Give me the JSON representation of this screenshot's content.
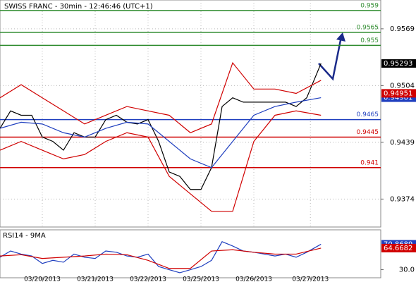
{
  "chart_data": [
    {
      "type": "line",
      "title": "SWISS FRANC - 30min - 12:46:46 (UTC+1)",
      "xlim": [
        0,
        7.2
      ],
      "ylim": [
        0.9342,
        0.9602
      ],
      "yticks": [
        0.9374,
        0.9439,
        0.9504,
        0.9569
      ],
      "grid": true,
      "xticks": [
        {
          "value": 0.8,
          "label": "03/20/2013"
        },
        {
          "value": 1.8,
          "label": "03/21/2013"
        },
        {
          "value": 2.8,
          "label": "03/22/2013"
        },
        {
          "value": 3.8,
          "label": "03/25/2013"
        },
        {
          "value": 4.8,
          "label": "03/26/2013"
        },
        {
          "value": 5.87,
          "label": "03/27/2013"
        }
      ],
      "series": [
        {
          "color": "#000000",
          "x": [
            0,
            0.2,
            0.4,
            0.6,
            0.8,
            1,
            1.2,
            1.4,
            1.6,
            1.8,
            2,
            2.2,
            2.4,
            2.6,
            2.8,
            3,
            3.2,
            3.4,
            3.6,
            3.8,
            4,
            4.2,
            4.4,
            4.6,
            4.8,
            5,
            5.2,
            5.4,
            5.6,
            5.8,
            6.07
          ],
          "values": [
            0.9455,
            0.9475,
            0.947,
            0.947,
            0.9445,
            0.944,
            0.943,
            0.945,
            0.9445,
            0.9445,
            0.9465,
            0.947,
            0.9462,
            0.946,
            0.9465,
            0.944,
            0.9405,
            0.94,
            0.9385,
            0.9385,
            0.941,
            0.948,
            0.949,
            0.9485,
            0.9485,
            0.9485,
            0.9485,
            0.9485,
            0.948,
            0.949,
            0.95293
          ]
        },
        {
          "color": "#1f3fbf",
          "x": [
            0,
            0.4,
            0.8,
            1.2,
            1.6,
            2,
            2.4,
            2.8,
            3.2,
            3.6,
            4,
            4.4,
            4.8,
            5.2,
            5.6,
            6.07
          ],
          "values": [
            0.9455,
            0.9462,
            0.946,
            0.945,
            0.9445,
            0.9455,
            0.9462,
            0.946,
            0.944,
            0.942,
            0.941,
            0.944,
            0.947,
            0.948,
            0.9485,
            0.94901
          ]
        },
        {
          "color": "#d00000",
          "x": [
            0,
            0.4,
            0.8,
            1.2,
            1.6,
            2,
            2.4,
            2.8,
            3.2,
            3.6,
            4,
            4.4,
            4.8,
            5.2,
            5.6,
            6.07
          ],
          "values": [
            0.949,
            0.9505,
            0.949,
            0.9475,
            0.946,
            0.947,
            0.948,
            0.9475,
            0.947,
            0.945,
            0.946,
            0.953,
            0.95,
            0.95,
            0.9495,
            0.951
          ]
        },
        {
          "color": "#d00000",
          "x": [
            0,
            0.4,
            0.8,
            1.2,
            1.6,
            2,
            2.4,
            2.8,
            3.2,
            3.6,
            4,
            4.4,
            4.8,
            5.2,
            5.6,
            6.07
          ],
          "values": [
            0.943,
            0.944,
            0.943,
            0.942,
            0.9425,
            0.944,
            0.945,
            0.9445,
            0.94,
            0.938,
            0.936,
            0.936,
            0.944,
            0.947,
            0.9475,
            0.947
          ]
        }
      ],
      "levels": [
        {
          "value": 0.959,
          "color": "#2e8b2e"
        },
        {
          "value": 0.9565,
          "color": "#2e8b2e"
        },
        {
          "value": 0.955,
          "color": "#2e8b2e"
        },
        {
          "value": 0.9465,
          "color": "#1f3fbf"
        },
        {
          "value": 0.9445,
          "color": "#d00000"
        },
        {
          "value": 0.941,
          "color": "#d00000"
        }
      ],
      "indicator_tags": [
        {
          "value": 0.94951,
          "color": "#d00000"
        }
      ]
    },
    {
      "type": "line",
      "title": "RSI14 - 9MA",
      "xlim": [
        0,
        7.2
      ],
      "ylim": [
        17,
        94
      ],
      "yticks": [
        {
          "value": 30,
          "label": "30.0"
        }
      ],
      "series": [
        {
          "color": "#1f3fbf",
          "x": [
            0,
            0.2,
            0.4,
            0.6,
            0.8,
            1,
            1.2,
            1.4,
            1.6,
            1.8,
            2,
            2.2,
            2.4,
            2.6,
            2.8,
            3,
            3.2,
            3.4,
            3.6,
            3.8,
            4,
            4.2,
            4.4,
            4.6,
            4.8,
            5,
            5.2,
            5.4,
            5.6,
            5.8,
            6.07
          ],
          "values": [
            50,
            60,
            55,
            52,
            40,
            45,
            42,
            55,
            50,
            48,
            60,
            58,
            52,
            50,
            55,
            35,
            30,
            25,
            30,
            35,
            45,
            75,
            68,
            60,
            58,
            55,
            52,
            55,
            50,
            58,
            70.8689
          ]
        },
        {
          "color": "#d00000",
          "x": [
            0,
            0.4,
            0.8,
            1.2,
            1.6,
            2,
            2.4,
            2.8,
            3.2,
            3.6,
            4,
            4.4,
            4.8,
            5.2,
            5.6,
            6.07
          ],
          "values": [
            52,
            54,
            48,
            50,
            52,
            55,
            54,
            45,
            32,
            32,
            60,
            62,
            58,
            55,
            55,
            64.6682
          ]
        }
      ]
    }
  ]
}
